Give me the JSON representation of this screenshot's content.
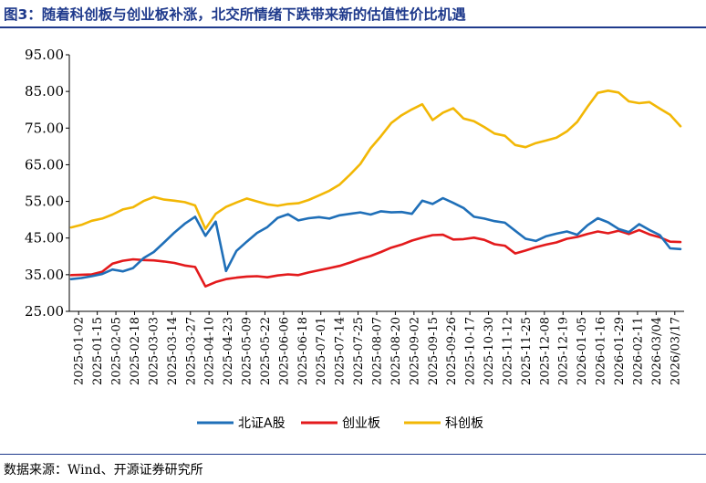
{
  "title": "图3：随着科创板与创业板补涨，北交所情绪下跌带来新的估值性价比机遇",
  "source": "数据来源：Wind、开源证券研究所",
  "chart_data": {
    "type": "line",
    "title": "",
    "xlabel": "",
    "ylabel": "",
    "ylim": [
      25,
      95
    ],
    "yticks": [
      "95.00",
      "85.00",
      "75.00",
      "65.00",
      "55.00",
      "45.00",
      "35.00",
      "25.00"
    ],
    "ytick_values": [
      95,
      85,
      75,
      65,
      55,
      45,
      35,
      25
    ],
    "xticks": [
      "2025-01-02",
      "2025-01-15",
      "2025-02-05",
      "2025-02-18",
      "2025-03-03",
      "2025-03-14",
      "2025-03-27",
      "2025-04-10",
      "2025-04-23",
      "2025-05-09",
      "2025-05-22",
      "2025-06-06",
      "2025-06-18",
      "2025-07-01",
      "2025-07-14",
      "2025-07-25",
      "2025-08-07",
      "2025-08-20",
      "2025-09-02",
      "2025-09-15",
      "2025-09-26",
      "2025-10-17",
      "2025-10-30",
      "2025-11-12",
      "2025-11-25",
      "2025-12-08",
      "2025-12-19",
      "2026-01-05",
      "2026-01-16",
      "2026-01-29",
      "2026-02-11",
      "2026-03/04",
      "2026/03/17"
    ],
    "grid": false,
    "legend_position": "bottom",
    "series": [
      {
        "name": "北证A股",
        "color": "#1f6fb8",
        "values": [
          33.8,
          34.1,
          34.6,
          35.2,
          36.4,
          35.9,
          36.8,
          39.5,
          41.2,
          43.8,
          46.5,
          48.9,
          50.8,
          45.6,
          49.5,
          36.0,
          41.5,
          44.0,
          46.4,
          48.0,
          50.5,
          51.5,
          49.8,
          50.4,
          50.7,
          50.3,
          51.2,
          51.6,
          52.0,
          51.4,
          52.3,
          52.0,
          52.1,
          51.6,
          55.2,
          54.3,
          55.9,
          54.6,
          53.2,
          50.8,
          50.3,
          49.6,
          49.2,
          47.0,
          44.8,
          44.2,
          45.5,
          46.2,
          46.8,
          45.9,
          48.5,
          50.4,
          49.3,
          47.5,
          46.6,
          48.8,
          47.2,
          45.8,
          42.2,
          42.0
        ]
      },
      {
        "name": "创业板",
        "color": "#e31a1c",
        "values": [
          34.9,
          35.0,
          35.1,
          35.8,
          38.0,
          38.8,
          39.2,
          39.0,
          38.9,
          38.6,
          38.2,
          37.5,
          37.1,
          31.8,
          33.0,
          33.8,
          34.2,
          34.5,
          34.6,
          34.3,
          34.8,
          35.1,
          34.9,
          35.6,
          36.2,
          36.8,
          37.4,
          38.3,
          39.3,
          40.1,
          41.2,
          42.4,
          43.2,
          44.3,
          45.1,
          45.8,
          45.9,
          44.6,
          44.7,
          45.1,
          44.5,
          43.3,
          42.9,
          40.8,
          41.6,
          42.5,
          43.2,
          43.8,
          44.8,
          45.3,
          46.1,
          46.8,
          46.3,
          47.0,
          46.1,
          47.2,
          46.0,
          45.2,
          44.0,
          43.9
        ]
      },
      {
        "name": "科创板",
        "color": "#f2b705",
        "values": [
          47.9,
          48.6,
          49.7,
          50.3,
          51.4,
          52.8,
          53.4,
          55.1,
          56.2,
          55.5,
          55.2,
          54.8,
          53.9,
          47.5,
          51.6,
          53.5,
          54.7,
          55.8,
          55.0,
          54.2,
          53.8,
          54.3,
          54.5,
          55.4,
          56.6,
          57.9,
          59.6,
          62.3,
          65.2,
          69.5,
          72.8,
          76.4,
          78.5,
          80.1,
          81.5,
          77.2,
          79.2,
          80.4,
          77.6,
          76.9,
          75.3,
          73.5,
          72.9,
          70.4,
          69.8,
          70.9,
          71.6,
          72.4,
          74.1,
          76.7,
          80.8,
          84.6,
          85.2,
          84.7,
          82.3,
          81.8,
          82.1,
          80.3,
          78.6,
          75.5
        ]
      }
    ]
  },
  "legend": {
    "items": [
      {
        "label": "北证A股",
        "color": "#1f6fb8"
      },
      {
        "label": "创业板",
        "color": "#e31a1c"
      },
      {
        "label": "科创板",
        "color": "#f2b705"
      }
    ]
  }
}
